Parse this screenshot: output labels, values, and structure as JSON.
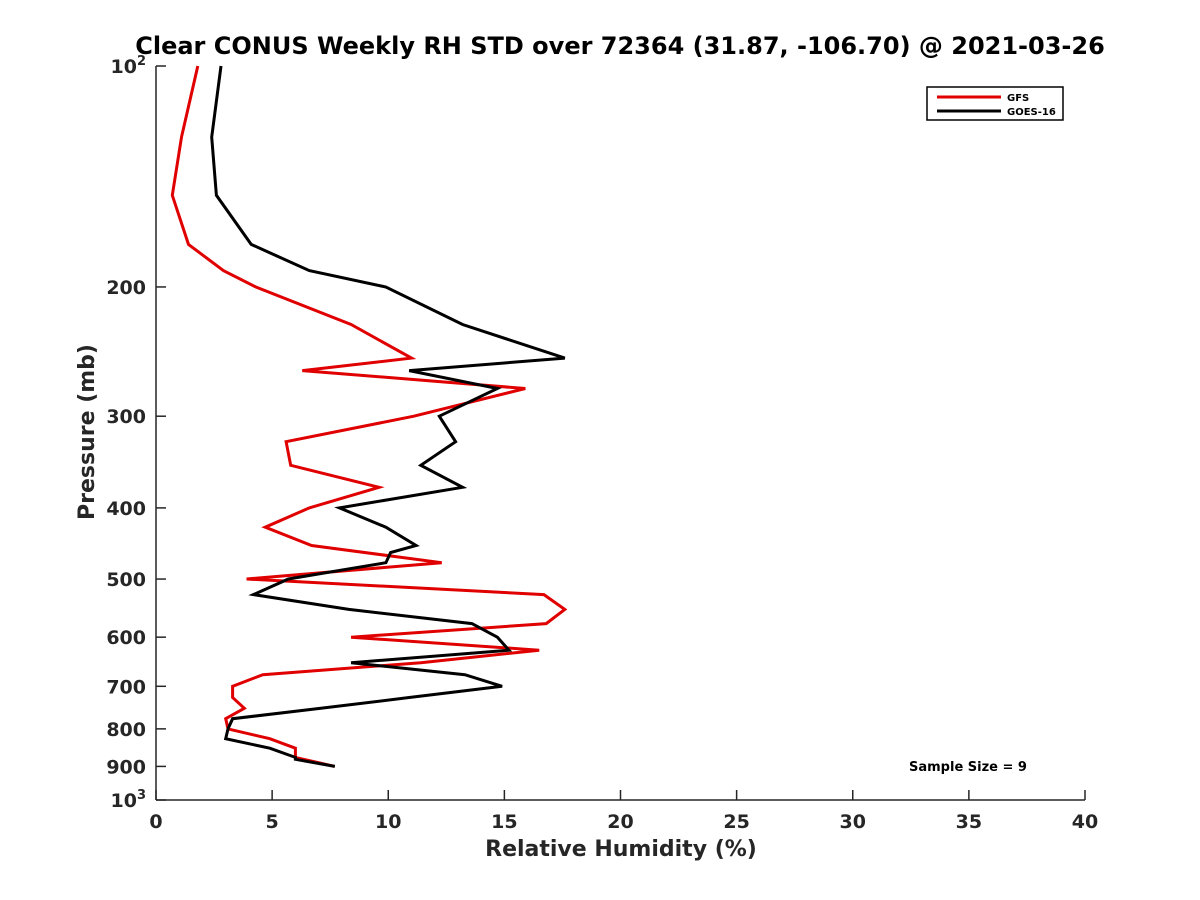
{
  "chart_data": {
    "type": "line",
    "title": "Clear CONUS Weekly RH STD over 72364 (31.87, -106.70) @ 2021-03-26",
    "xlabel": "Relative Humidity (%)",
    "ylabel": "Pressure (mb)",
    "xlim": [
      0,
      40
    ],
    "ylim": [
      100,
      1000
    ],
    "y_scale": "log",
    "y_reversed": true,
    "x_ticks": [
      0,
      5,
      10,
      15,
      20,
      25,
      30,
      35,
      40
    ],
    "y_ticks": [
      {
        "value": 100,
        "label": "10",
        "sup": "2"
      },
      {
        "value": 200,
        "label": "200",
        "sup": ""
      },
      {
        "value": 300,
        "label": "300",
        "sup": ""
      },
      {
        "value": 400,
        "label": "400",
        "sup": ""
      },
      {
        "value": 500,
        "label": "500",
        "sup": ""
      },
      {
        "value": 600,
        "label": "600",
        "sup": ""
      },
      {
        "value": 700,
        "label": "700",
        "sup": ""
      },
      {
        "value": 800,
        "label": "800",
        "sup": ""
      },
      {
        "value": 900,
        "label": "900",
        "sup": ""
      },
      {
        "value": 1000,
        "label": "10",
        "sup": "3"
      }
    ],
    "grid": false,
    "legend_position": "top-right",
    "annotation": "Sample Size = 9",
    "series": [
      {
        "name": "GFS",
        "color": "#e00000",
        "x": [
          1.8,
          1.1,
          0.7,
          1.4,
          2.9,
          4.3,
          8.4,
          11.0,
          6.3,
          15.9,
          11.1,
          5.6,
          5.8,
          9.6,
          6.6,
          4.7,
          6.7,
          12.3,
          3.9,
          16.7,
          17.6,
          16.8,
          8.4,
          16.5,
          11.4,
          4.6,
          3.3,
          3.3,
          3.8,
          3.0,
          3.1,
          4.9,
          6.0,
          6.0,
          7.7
        ],
        "y": [
          100,
          125,
          150,
          175,
          190,
          200,
          225,
          250,
          260,
          275,
          300,
          325,
          350,
          375,
          400,
          425,
          450,
          475,
          500,
          525,
          550,
          575,
          600,
          625,
          650,
          675,
          700,
          725,
          750,
          775,
          800,
          825,
          850,
          875,
          900
        ]
      },
      {
        "name": "GOES-16",
        "color": "#000000",
        "x": [
          2.8,
          2.4,
          2.6,
          4.1,
          6.6,
          9.9,
          13.2,
          17.6,
          10.9,
          14.7,
          12.2,
          12.9,
          11.4,
          13.2,
          7.9,
          9.9,
          11.2,
          10.1,
          9.9,
          5.7,
          4.2,
          8.3,
          13.6,
          14.7,
          15.2,
          8.4,
          13.3,
          14.9,
          10.9,
          7.1,
          3.3,
          3.1,
          3.0,
          4.9,
          6.0,
          6.0,
          7.7
        ],
        "y": [
          100,
          125,
          150,
          175,
          190,
          200,
          225,
          250,
          260,
          275,
          300,
          325,
          350,
          375,
          400,
          425,
          450,
          460,
          475,
          500,
          525,
          550,
          575,
          600,
          625,
          650,
          675,
          700,
          725,
          750,
          775,
          800,
          825,
          850,
          875,
          880,
          900
        ]
      }
    ]
  }
}
